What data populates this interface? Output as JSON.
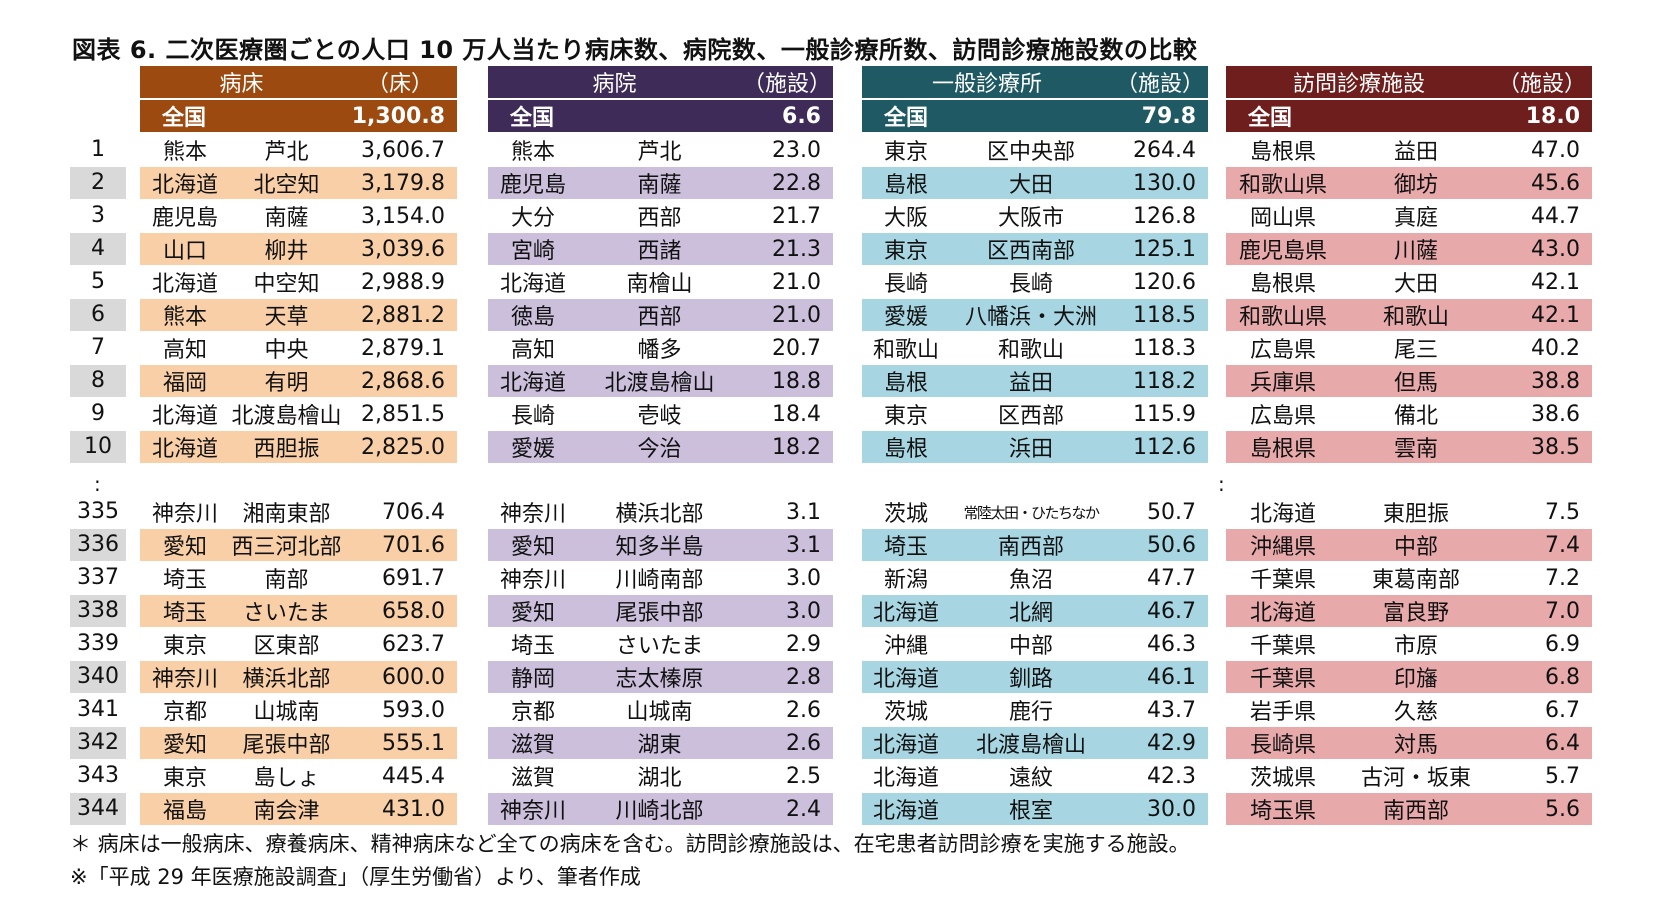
{
  "title": "図表 6.  二次医療圏ごとの人口 10 万人当たり病床数、病院数、一般診療所数、訪問診療施設数の比較",
  "ranks_top": [
    "1",
    "2",
    "3",
    "4",
    "5",
    "6",
    "7",
    "8",
    "9",
    "10"
  ],
  "ranks_bottom": [
    "335",
    "336",
    "337",
    "338",
    "339",
    "340",
    "341",
    "342",
    "343",
    "344"
  ],
  "ellipsis": ":",
  "colors": {
    "beds_header": "#9c4a10",
    "beds_row": "#f8cfa6",
    "hosp_header": "#3f2b57",
    "hosp_row": "#cbbfdc",
    "clinic_header": "#1f5a64",
    "clinic_row": "#a7d6e2",
    "home_header": "#6e1e1c",
    "home_row": "#e8a9ab",
    "rank_row": "#d9d9d9"
  },
  "tables": [
    {
      "key": "beds",
      "name": "病床",
      "unit": "（床）",
      "national_label": "全国",
      "national_value": "1,300.8",
      "top": [
        [
          "熊本",
          "芦北",
          "3,606.7"
        ],
        [
          "北海道",
          "北空知",
          "3,179.8"
        ],
        [
          "鹿児島",
          "南薩",
          "3,154.0"
        ],
        [
          "山口",
          "柳井",
          "3,039.6"
        ],
        [
          "北海道",
          "中空知",
          "2,988.9"
        ],
        [
          "熊本",
          "天草",
          "2,881.2"
        ],
        [
          "高知",
          "中央",
          "2,879.1"
        ],
        [
          "福岡",
          "有明",
          "2,868.6"
        ],
        [
          "北海道",
          "北渡島檜山",
          "2,851.5"
        ],
        [
          "北海道",
          "西胆振",
          "2,825.0"
        ]
      ],
      "bottom": [
        [
          "神奈川",
          "湘南東部",
          "706.4"
        ],
        [
          "愛知",
          "西三河北部",
          "701.6"
        ],
        [
          "埼玉",
          "南部",
          "691.7"
        ],
        [
          "埼玉",
          "さいたま",
          "658.0"
        ],
        [
          "東京",
          "区東部",
          "623.7"
        ],
        [
          "神奈川",
          "横浜北部",
          "600.0"
        ],
        [
          "京都",
          "山城南",
          "593.0"
        ],
        [
          "愛知",
          "尾張中部",
          "555.1"
        ],
        [
          "東京",
          "島しょ",
          "445.4"
        ],
        [
          "福島",
          "南会津",
          "431.0"
        ]
      ]
    },
    {
      "key": "hosp",
      "name": "病院",
      "unit": "（施設）",
      "national_label": "全国",
      "national_value": "6.6",
      "top": [
        [
          "熊本",
          "芦北",
          "23.0"
        ],
        [
          "鹿児島",
          "南薩",
          "22.8"
        ],
        [
          "大分",
          "西部",
          "21.7"
        ],
        [
          "宮崎",
          "西諸",
          "21.3"
        ],
        [
          "北海道",
          "南檜山",
          "21.0"
        ],
        [
          "徳島",
          "西部",
          "21.0"
        ],
        [
          "高知",
          "幡多",
          "20.7"
        ],
        [
          "北海道",
          "北渡島檜山",
          "18.8"
        ],
        [
          "長崎",
          "壱岐",
          "18.4"
        ],
        [
          "愛媛",
          "今治",
          "18.2"
        ]
      ],
      "bottom": [
        [
          "神奈川",
          "横浜北部",
          "3.1"
        ],
        [
          "愛知",
          "知多半島",
          "3.1"
        ],
        [
          "神奈川",
          "川崎南部",
          "3.0"
        ],
        [
          "愛知",
          "尾張中部",
          "3.0"
        ],
        [
          "埼玉",
          "さいたま",
          "2.9"
        ],
        [
          "静岡",
          "志太榛原",
          "2.8"
        ],
        [
          "京都",
          "山城南",
          "2.6"
        ],
        [
          "滋賀",
          "湖東",
          "2.6"
        ],
        [
          "滋賀",
          "湖北",
          "2.5"
        ],
        [
          "神奈川",
          "川崎北部",
          "2.4"
        ]
      ]
    },
    {
      "key": "clinic",
      "name": "一般診療所",
      "unit": "（施設）",
      "national_label": "全国",
      "national_value": "79.8",
      "top": [
        [
          "東京",
          "区中央部",
          "264.4"
        ],
        [
          "島根",
          "大田",
          "130.0"
        ],
        [
          "大阪",
          "大阪市",
          "126.8"
        ],
        [
          "東京",
          "区西南部",
          "125.1"
        ],
        [
          "長崎",
          "長崎",
          "120.6"
        ],
        [
          "愛媛",
          "八幡浜・大洲",
          "118.5"
        ],
        [
          "和歌山",
          "和歌山",
          "118.3"
        ],
        [
          "島根",
          "益田",
          "118.2"
        ],
        [
          "東京",
          "区西部",
          "115.9"
        ],
        [
          "島根",
          "浜田",
          "112.6"
        ]
      ],
      "bottom": [
        [
          "茨城",
          "常陸太田・ひたちなか",
          "50.7"
        ],
        [
          "埼玉",
          "南西部",
          "50.6"
        ],
        [
          "新潟",
          "魚沼",
          "47.7"
        ],
        [
          "北海道",
          "北網",
          "46.7"
        ],
        [
          "沖縄",
          "中部",
          "46.3"
        ],
        [
          "北海道",
          "釧路",
          "46.1"
        ],
        [
          "茨城",
          "鹿行",
          "43.7"
        ],
        [
          "北海道",
          "北渡島檜山",
          "42.9"
        ],
        [
          "北海道",
          "遠紋",
          "42.3"
        ],
        [
          "北海道",
          "根室",
          "30.0"
        ]
      ]
    },
    {
      "key": "home",
      "name": "訪問診療施設",
      "unit": "（施設）",
      "national_label": "全国",
      "national_value": "18.0",
      "top": [
        [
          "島根県",
          "益田",
          "47.0"
        ],
        [
          "和歌山県",
          "御坊",
          "45.6"
        ],
        [
          "岡山県",
          "真庭",
          "44.7"
        ],
        [
          "鹿児島県",
          "川薩",
          "43.0"
        ],
        [
          "島根県",
          "大田",
          "42.1"
        ],
        [
          "和歌山県",
          "和歌山",
          "42.1"
        ],
        [
          "広島県",
          "尾三",
          "40.2"
        ],
        [
          "兵庫県",
          "但馬",
          "38.8"
        ],
        [
          "広島県",
          "備北",
          "38.6"
        ],
        [
          "島根県",
          "雲南",
          "38.5"
        ]
      ],
      "bottom": [
        [
          "北海道",
          "東胆振",
          "7.5"
        ],
        [
          "沖縄県",
          "中部",
          "7.4"
        ],
        [
          "千葉県",
          "東葛南部",
          "7.2"
        ],
        [
          "北海道",
          "富良野",
          "7.0"
        ],
        [
          "千葉県",
          "市原",
          "6.9"
        ],
        [
          "千葉県",
          "印旛",
          "6.8"
        ],
        [
          "岩手県",
          "久慈",
          "6.7"
        ],
        [
          "長崎県",
          "対馬",
          "6.4"
        ],
        [
          "茨城県",
          "古河・坂東",
          "5.7"
        ],
        [
          "埼玉県",
          "南西部",
          "5.6"
        ]
      ]
    }
  ],
  "footnote1": "＊ 病床は一般病床、療養病床、精神病床など全ての病床を含む。訪問診療施設は、在宅患者訪問診療を実施する施設。",
  "footnote2": "※「平成 29 年医療施設調査」（厚生労働省）より、筆者作成"
}
